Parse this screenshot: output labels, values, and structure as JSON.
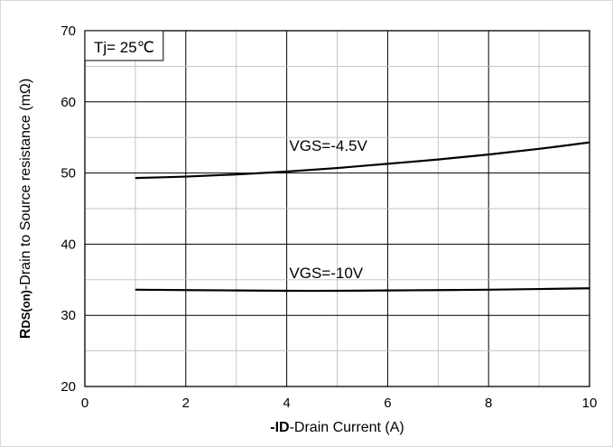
{
  "chart_data": {
    "type": "line",
    "xlabel": {
      "prefix": "-ID",
      "rest": "-Drain Current  (A)"
    },
    "ylabel": {
      "main": "R",
      "sub": "DS(on)",
      "rest": "-Drain to Source resistance  (mΩ)"
    },
    "xlim": [
      0,
      10
    ],
    "ylim": [
      20,
      70
    ],
    "x_ticks": [
      "0",
      "2",
      "4",
      "6",
      "8",
      "10"
    ],
    "y_ticks": [
      "20",
      "30",
      "40",
      "50",
      "60",
      "70"
    ],
    "grid": true,
    "annotations": [
      {
        "text": "Tj= 25℃",
        "boxed": true
      },
      {
        "text": "VGS=-4.5V"
      },
      {
        "text": "VGS=-10V"
      }
    ],
    "series": [
      {
        "label": "VGS=-4.5V",
        "color": "#000000",
        "x": [
          1,
          2,
          3,
          4,
          5,
          6,
          7,
          8,
          9,
          10
        ],
        "y": [
          49.3,
          49.5,
          49.8,
          50.2,
          50.7,
          51.3,
          51.9,
          52.6,
          53.4,
          54.3
        ]
      },
      {
        "label": "VGS=-10V",
        "color": "#000000",
        "x": [
          1,
          2,
          3,
          4,
          5,
          6,
          7,
          8,
          9,
          10
        ],
        "y": [
          33.6,
          33.55,
          33.5,
          33.45,
          33.45,
          33.5,
          33.55,
          33.6,
          33.7,
          33.8
        ]
      }
    ]
  }
}
